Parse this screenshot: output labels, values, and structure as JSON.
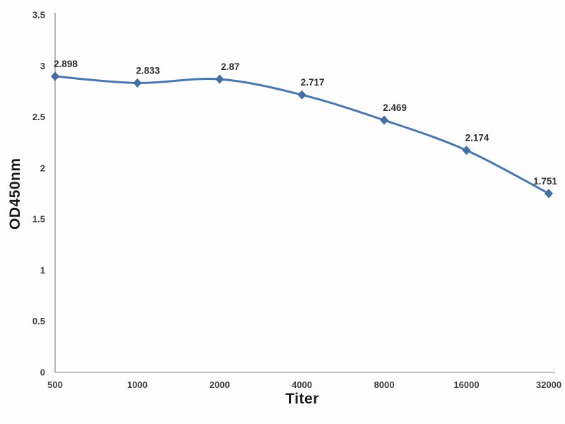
{
  "chart_data": {
    "type": "line",
    "title": "",
    "xlabel": "Titer",
    "ylabel": "OD450nm",
    "categories": [
      "500",
      "1000",
      "2000",
      "4000",
      "8000",
      "16000",
      "32000"
    ],
    "series": [
      {
        "name": "OD450nm",
        "values": [
          2.898,
          2.833,
          2.87,
          2.717,
          2.469,
          2.174,
          1.751
        ]
      }
    ],
    "point_labels": [
      "2.898",
      "2.833",
      "2.87",
      "2.717",
      "2.469",
      "2.174",
      "1.751"
    ],
    "ylim": [
      0,
      3.5
    ],
    "ytick_step": 0.5,
    "ytick_labels": [
      "0",
      "0.5",
      "1",
      "1.5",
      "2",
      "2.5",
      "3",
      "3.5"
    ],
    "grid": false,
    "legend": "none",
    "line_smooth": true,
    "marker": "diamond",
    "line_color": "#4a78ae",
    "marker_fill": "#4472a8",
    "marker_stroke": "#3d6494",
    "axis_color": "#a3a3a3",
    "tick_text_color": "#3f3f3f",
    "label_text_color": "#2e2e2e"
  }
}
